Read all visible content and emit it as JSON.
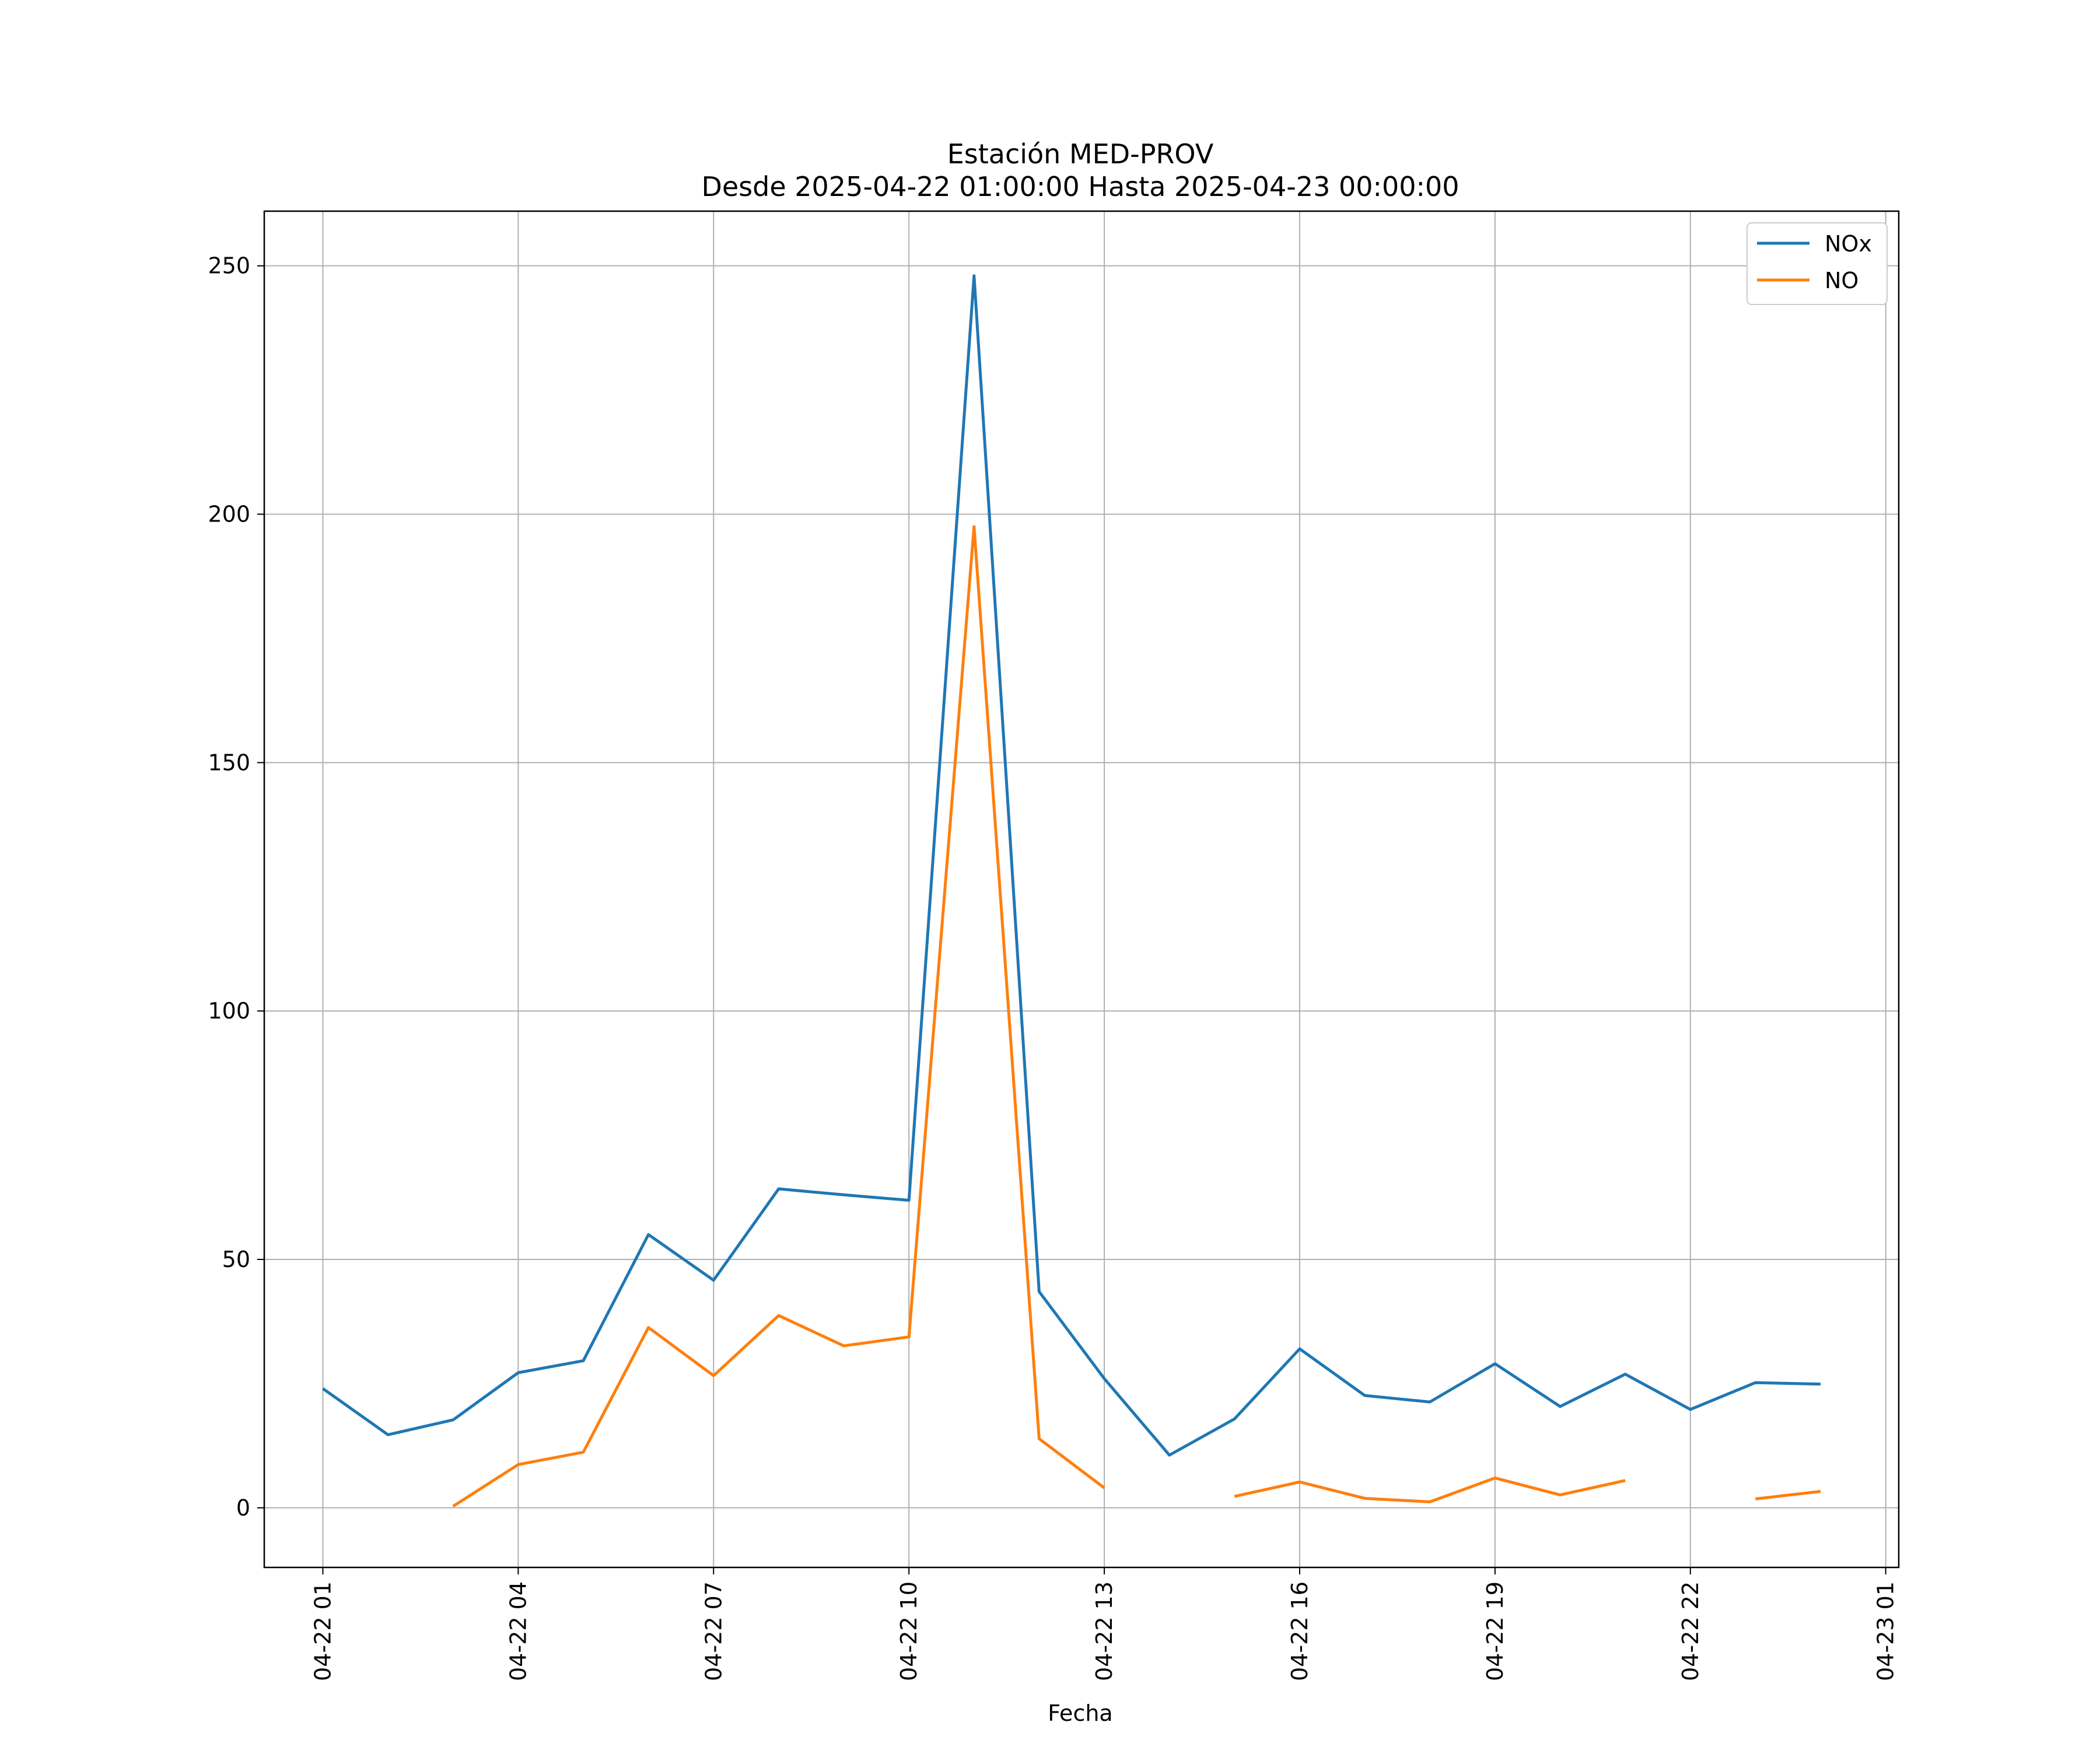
{
  "chart_data": {
    "type": "line",
    "title": "Estación MED-PROV",
    "subtitle": "Desde 2025-04-22 01:00:00 Hasta 2025-04-23 00:00:00",
    "xlabel": "Fecha",
    "ylabel": "",
    "x": [
      "04-22 01",
      "04-22 02",
      "04-22 03",
      "04-22 04",
      "04-22 05",
      "04-22 06",
      "04-22 07",
      "04-22 08",
      "04-22 09",
      "04-22 10",
      "04-22 11",
      "04-22 12",
      "04-22 13",
      "04-22 14",
      "04-22 15",
      "04-22 16",
      "04-22 17",
      "04-22 18",
      "04-22 19",
      "04-22 20",
      "04-22 21",
      "04-22 22",
      "04-22 23",
      "04-23 00"
    ],
    "series": [
      {
        "name": "NOx",
        "color": "#1f77b4",
        "values": [
          24,
          14.7,
          17.7,
          27.2,
          29.6,
          55,
          45.8,
          64.2,
          63,
          61.9,
          248,
          43.5,
          26,
          10.6,
          17.9,
          32,
          22.6,
          21.3,
          29,
          20.4,
          26.9,
          19.8,
          25.2,
          24.9
        ]
      },
      {
        "name": "NO",
        "color": "#ff7f0e",
        "values": [
          null,
          null,
          0.3,
          8.7,
          11.2,
          36.3,
          26.6,
          38.7,
          32.6,
          34.4,
          197.5,
          13.9,
          4,
          null,
          2.3,
          5.2,
          1.9,
          1.2,
          6,
          2.6,
          5.5,
          null,
          1.8,
          3.3
        ]
      }
    ],
    "xticks": [
      "04-22 01",
      "04-22 04",
      "04-22 07",
      "04-22 10",
      "04-22 13",
      "04-22 16",
      "04-22 19",
      "04-22 22",
      "04-23 01"
    ],
    "yticks": [
      0,
      50,
      100,
      150,
      200,
      250
    ],
    "xlim_hours": [
      -0.9,
      24.2
    ],
    "ylim": [
      -12,
      261
    ],
    "grid": true,
    "legend_position": "top-right"
  }
}
